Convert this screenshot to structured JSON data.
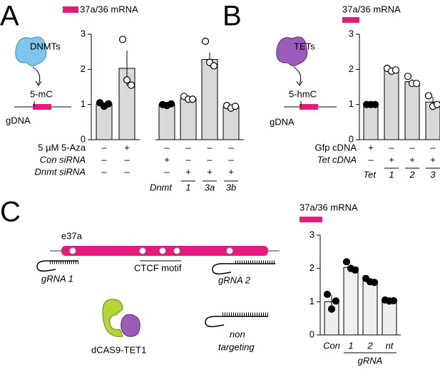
{
  "panels": [
    "A",
    "B",
    "C"
  ],
  "diagram": {
    "dnmt": "DNMTs",
    "mc": "5-mC",
    "gdna_a": "gDNA",
    "tet": "TETs",
    "hmc": "5-hmC",
    "gdna_b": "gDNA",
    "exon": "e37a",
    "ctcf": "CTCF motif",
    "grna1": "gRNA 1",
    "grna2": "gRNA 2",
    "dcas": "dCAS9-TET1",
    "non1": "non",
    "non2": "targeting"
  },
  "chart_data": [
    {
      "type": "bar",
      "title": "37a/36 mRNA",
      "color": "#d9d9d9",
      "title_color": "#e6197d",
      "categories": [
        null,
        null
      ],
      "values": [
        1.02,
        2.03
      ],
      "errors": [
        0.04,
        0.5
      ],
      "points": [
        [
          1.05,
          0.95,
          1.02
        ],
        [
          2.85,
          1.7,
          1.55
        ]
      ],
      "point_fill": [
        "#000000",
        "#ffffff"
      ],
      "ylim": [
        0,
        3
      ],
      "yticks": [
        0,
        1,
        2,
        3
      ],
      "rows": [
        {
          "label": "5 µM 5-Aza",
          "signs": [
            "–",
            "+"
          ]
        },
        {
          "label": "Con siRNA",
          "signs": [
            "–",
            "–"
          ]
        },
        {
          "label": "Dnmt siRNA",
          "signs": [
            "–",
            "–"
          ]
        }
      ]
    },
    {
      "type": "bar",
      "color": "#d9d9d9",
      "categories": [
        null,
        "1",
        "3a",
        "3b"
      ],
      "group_label": "Dnmt",
      "values": [
        1.0,
        1.17,
        2.28,
        0.93
      ],
      "errors": [
        0.02,
        0.05,
        0.2,
        0.04
      ],
      "points": [
        [
          1.0,
          0.97,
          1.02
        ],
        [
          1.23,
          1.15,
          1.15
        ],
        [
          2.8,
          2.2,
          2.1
        ],
        [
          0.97,
          0.9,
          0.95
        ]
      ],
      "point_fill": [
        "#000000",
        "#ffffff",
        "#ffffff",
        "#ffffff"
      ],
      "ylim": [
        0,
        3
      ],
      "rows": [
        {
          "signs": [
            "–",
            "–",
            "–",
            "–"
          ]
        },
        {
          "signs": [
            "+",
            "–",
            "–",
            "–"
          ]
        },
        {
          "signs": [
            "–",
            "+",
            "+",
            "+"
          ]
        }
      ]
    },
    {
      "type": "bar",
      "title": "37a/36 mRNA",
      "color": "#d9d9d9",
      "title_color": "#e6197d",
      "categories": [
        null,
        "1",
        "2",
        "3"
      ],
      "group_label": "Tet",
      "values": [
        1.0,
        1.98,
        1.65,
        1.07
      ],
      "errors": [
        0.01,
        0.03,
        0.07,
        0.15
      ],
      "points": [
        [
          1.0,
          1.0,
          1.0
        ],
        [
          2.03,
          1.95,
          1.98
        ],
        [
          1.8,
          1.6,
          1.6
        ],
        [
          1.25,
          0.95,
          1.0
        ]
      ],
      "point_fill": [
        "#000000",
        "#ffffff",
        "#ffffff",
        "#ffffff"
      ],
      "ylim": [
        0,
        3
      ],
      "yticks": [
        0,
        1,
        2,
        3
      ],
      "rows": [
        {
          "label": "Gfp cDNA",
          "signs": [
            "+",
            "–",
            "–",
            "–"
          ]
        },
        {
          "label": "Tet cDNA",
          "signs": [
            "–",
            "+",
            "+",
            "+"
          ]
        }
      ]
    },
    {
      "type": "bar",
      "title": "37a/36 mRNA",
      "color": "#eeeeee",
      "title_color": "#e6197d",
      "categories": [
        "Con",
        "1",
        "2",
        "nt"
      ],
      "xlabel": "gRNA",
      "values": [
        1.0,
        2.03,
        1.63,
        1.03
      ],
      "errors": [
        0.2,
        0.1,
        0.07,
        0.02
      ],
      "points": [
        [
          1.22,
          0.78,
          1.02
        ],
        [
          2.2,
          2.0,
          1.95
        ],
        [
          1.7,
          1.6,
          1.58
        ],
        [
          1.05,
          1.02,
          1.03
        ]
      ],
      "point_fill": [
        "#000000",
        "#000000",
        "#000000",
        "#000000"
      ],
      "ylim": [
        0,
        3
      ],
      "yticks": [
        0,
        1,
        2,
        3
      ]
    }
  ]
}
